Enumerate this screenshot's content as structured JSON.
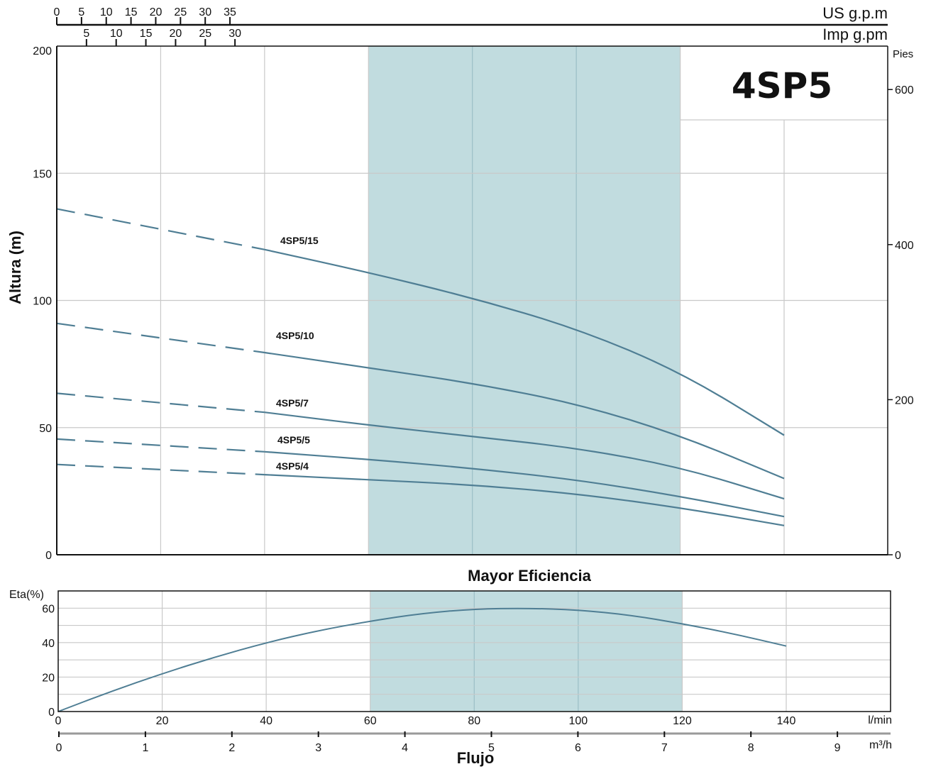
{
  "chart_data": [
    {
      "type": "line",
      "title": "4SP5",
      "ylabel": "Altura (m)",
      "ylim": [
        0,
        200
      ],
      "y_ticks": [
        "0",
        "50",
        "100",
        "150",
        "200"
      ],
      "right_axis": {
        "label": "Pies",
        "ticks": [
          "0",
          "200",
          "400",
          "600"
        ],
        "tick_values": [
          0,
          200,
          400,
          600
        ],
        "ylim": [
          0,
          656
        ]
      },
      "top_axis_us": {
        "label": "US g.p.m",
        "ticks": [
          "0",
          "5",
          "10",
          "15",
          "20",
          "25",
          "30",
          "35"
        ],
        "tick_values": [
          0,
          5,
          10,
          15,
          20,
          25,
          30,
          35
        ]
      },
      "top_axis_imp": {
        "label": "Imp g.pm",
        "ticks": [
          "5",
          "10",
          "15",
          "20",
          "25",
          "30"
        ],
        "tick_values": [
          5,
          10,
          15,
          20,
          25,
          30
        ]
      },
      "x_unit": "l/min",
      "xlim": [
        0,
        160
      ],
      "best_efficiency_range": [
        60,
        120
      ],
      "grid": true,
      "series": [
        {
          "name": "4SP5/15",
          "dashed_until": 40,
          "x": [
            0,
            40,
            60,
            80,
            100,
            120,
            140
          ],
          "y": [
            136,
            120,
            111,
            101,
            89,
            72,
            47
          ]
        },
        {
          "name": "4SP5/10",
          "dashed_until": 40,
          "x": [
            0,
            40,
            60,
            80,
            100,
            120,
            140
          ],
          "y": [
            91,
            79.5,
            73.5,
            67.5,
            59.5,
            47,
            30
          ]
        },
        {
          "name": "4SP5/7",
          "dashed_until": 40,
          "x": [
            0,
            40,
            60,
            80,
            100,
            120,
            140
          ],
          "y": [
            63.5,
            56,
            51,
            46.5,
            42,
            34.5,
            22
          ]
        },
        {
          "name": "4SP5/5",
          "dashed_until": 40,
          "x": [
            0,
            40,
            60,
            80,
            100,
            120,
            140
          ],
          "y": [
            45.5,
            40.5,
            37.5,
            34,
            29.5,
            23,
            15
          ]
        },
        {
          "name": "4SP5/4",
          "dashed_until": 40,
          "x": [
            0,
            40,
            60,
            80,
            100,
            120,
            140
          ],
          "y": [
            35.5,
            31.5,
            29.5,
            27.5,
            24,
            18.5,
            11.5
          ]
        }
      ]
    },
    {
      "type": "line",
      "title": "Mayor Eficiencia",
      "ylabel": "Eta(%)",
      "ylim": [
        0,
        70
      ],
      "y_ticks": [
        "0",
        "20",
        "40",
        "60"
      ],
      "xlabel": "Flujo",
      "x_unit": "l/min",
      "xlim": [
        0,
        160
      ],
      "x_ticks": [
        "0",
        "20",
        "40",
        "60",
        "80",
        "100",
        "120",
        "140"
      ],
      "x_tick_values": [
        0,
        20,
        40,
        60,
        80,
        100,
        120,
        140
      ],
      "secondary_x_axis": {
        "unit": "m³/h",
        "ticks": [
          "0",
          "1",
          "2",
          "3",
          "4",
          "5",
          "6",
          "7",
          "8",
          "9"
        ],
        "tick_values": [
          0,
          1,
          2,
          3,
          4,
          5,
          6,
          7,
          8,
          9
        ]
      },
      "best_efficiency_range": [
        60,
        120
      ],
      "grid": true,
      "series": [
        {
          "x": [
            0,
            10,
            20,
            30,
            40,
            50,
            60,
            70,
            80,
            90,
            100,
            110,
            120,
            130,
            140
          ],
          "y": [
            0,
            11.5,
            22,
            31.5,
            40,
            47,
            52.5,
            57,
            59.5,
            60,
            59,
            56,
            51,
            45,
            38
          ]
        }
      ]
    }
  ]
}
